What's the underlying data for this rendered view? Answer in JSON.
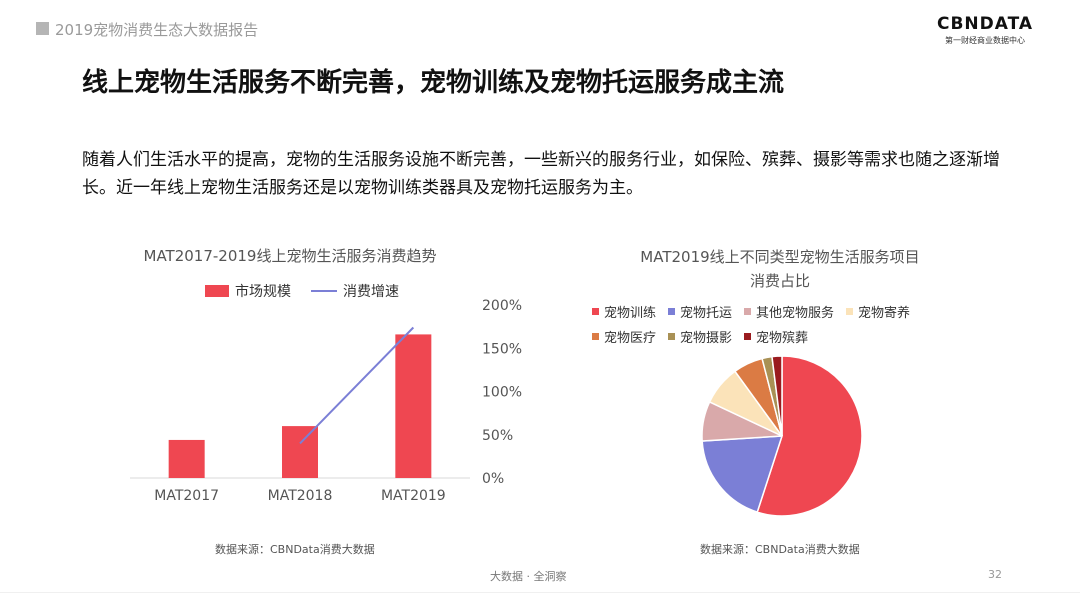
{
  "header": {
    "report_title": "2019宠物消费生态大数据报告",
    "logo_text": "CBNDATA",
    "logo_subtitle": "第一财经商业数据中心"
  },
  "headline": "线上宠物生活服务不断完善，宠物训练及宠物托运服务成主流",
  "intro": "随着人们生活水平的提高，宠物的生活服务设施不断完善，一些新兴的服务行业，如保险、殡葬、摄影等需求也随之逐渐增长。近一年线上宠物生活服务还是以宠物训练类器具及宠物托运服务为主。",
  "colors": {
    "bar": "#ef4751",
    "line": "#7b7fd6"
  },
  "chart_data": [
    {
      "type": "bar",
      "title": "MAT2017-2019线上宠物生活服务消费趋势",
      "categories": [
        "MAT2017",
        "MAT2018",
        "MAT2019"
      ],
      "series": [
        {
          "name": "市场规模",
          "type": "bar",
          "values": [
            0.22,
            0.3,
            0.83
          ]
        },
        {
          "name": "消费增速",
          "type": "line",
          "axis": "right",
          "values": [
            null,
            40,
            174
          ]
        }
      ],
      "y2_ticks": [
        "0%",
        "50%",
        "100%",
        "150%",
        "200%"
      ],
      "y2lim": [
        0,
        200
      ],
      "ylim": [
        0,
        1
      ],
      "grid": false,
      "legend": "top",
      "source": "数据来源：CBNData消费大数据"
    },
    {
      "type": "pie",
      "title": "MAT2019线上不同类型宠物生活服务项目",
      "title_line2": "消费占比",
      "labels": [
        "宠物训练",
        "宠物托运",
        "其他宠物服务",
        "宠物寄养",
        "宠物医疗",
        "宠物摄影",
        "宠物殡葬"
      ],
      "values": [
        55,
        19,
        8,
        8,
        6,
        2,
        2
      ],
      "colors": [
        "#ef4751",
        "#7b7fd6",
        "#d9a9aa",
        "#fbe3b9",
        "#db7b44",
        "#a99155",
        "#9a1b1f"
      ],
      "legend": "top",
      "source": "数据来源：CBNData消费大数据"
    }
  ],
  "footer": {
    "text": "大数据 · 全洞察",
    "page": "32"
  }
}
